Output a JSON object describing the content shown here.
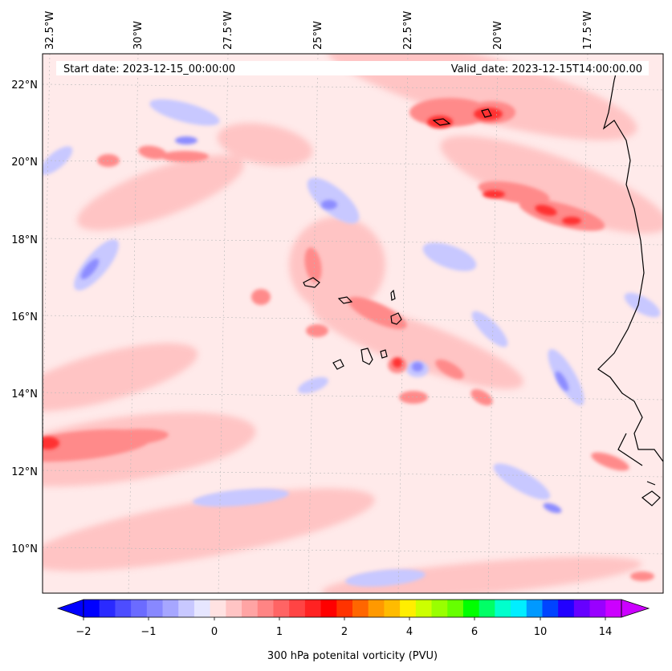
{
  "map": {
    "start_label": "Start date: 2023-12-15_00:00:00",
    "valid_label": "Valid_date: 2023-12-15T14:00:00.00",
    "lon_labels": [
      "32.5°W",
      "30°W",
      "27.5°W",
      "25°W",
      "22.5°W",
      "20°W",
      "17.5°W"
    ],
    "lat_labels": [
      "22°N",
      "20°N",
      "18°N",
      "16°N",
      "14°N",
      "12°N",
      "10°N"
    ],
    "colors": {
      "background": "#ffeaea",
      "light_red": "#ffc2c2",
      "mid_red": "#ff8a8a",
      "strong_red": "#ff3030",
      "light_blue": "#c8c8ff",
      "mid_blue": "#8c8cff",
      "coast": "#000000"
    }
  },
  "colorbar": {
    "title": "300 hPa potenital vorticity (PVU)",
    "tick_labels": [
      "−2",
      "−1",
      "0",
      "1",
      "2",
      "4",
      "6",
      "10",
      "14"
    ],
    "colors": [
      "#0000ff",
      "#2a2aff",
      "#4d4dff",
      "#6b6bff",
      "#8888ff",
      "#a6a6ff",
      "#c8c8ff",
      "#e6e6ff",
      "#ffe2e2",
      "#ffc4c4",
      "#ffa4a4",
      "#ff8484",
      "#ff6464",
      "#ff4444",
      "#ff2222",
      "#ff0000",
      "#ff3300",
      "#ff6600",
      "#ff9900",
      "#ffbb00",
      "#ffee00",
      "#ccff00",
      "#99ff00",
      "#66ff00",
      "#00ff00",
      "#00ff66",
      "#00ffcc",
      "#00eeff",
      "#0099ff",
      "#0044ff",
      "#2200ff",
      "#6600ff",
      "#9900ff",
      "#cc00ff"
    ],
    "extend_low": "#0000ff",
    "extend_high": "#cc00ff"
  }
}
